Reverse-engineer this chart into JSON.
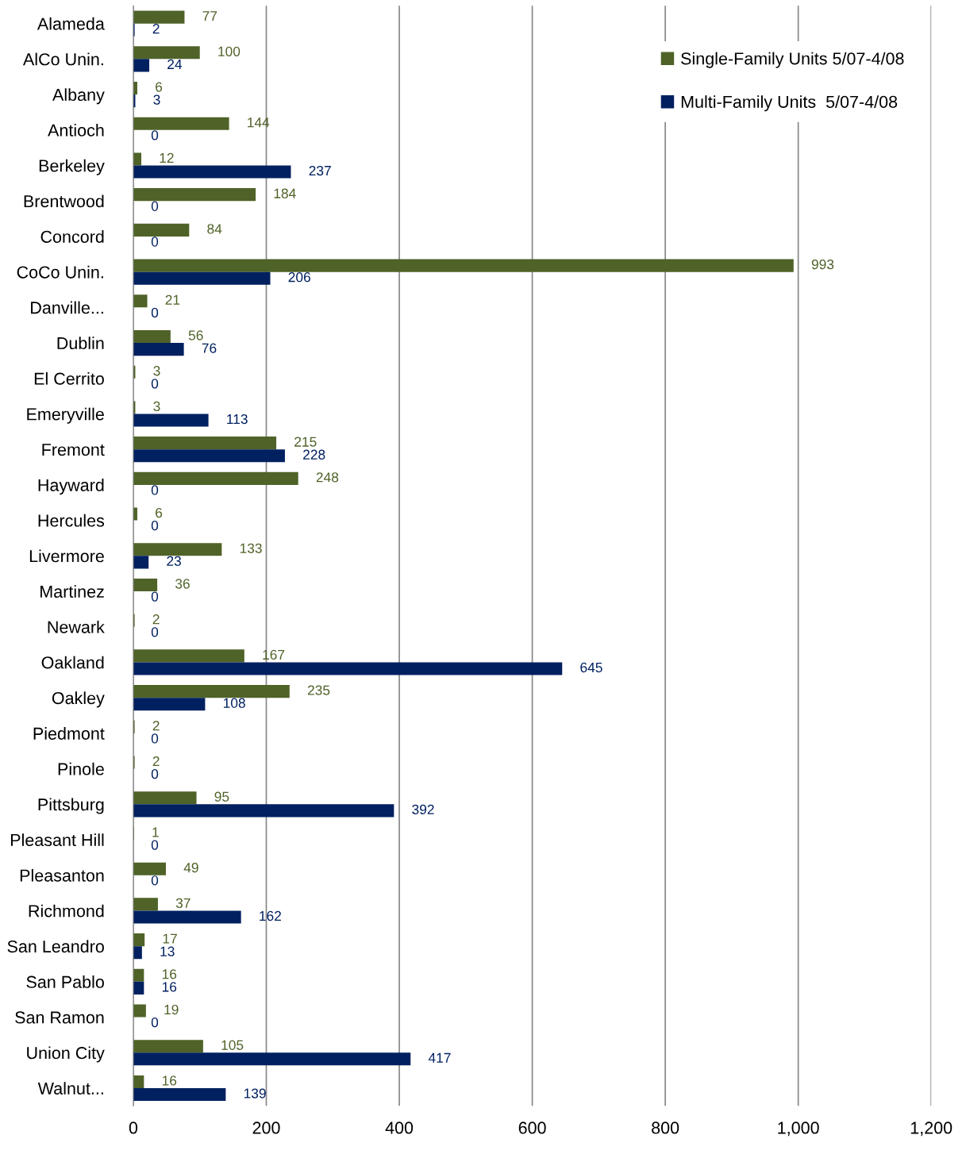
{
  "chart_data": {
    "type": "bar",
    "orientation": "horizontal",
    "categories": [
      "Alameda",
      "AlCo Unin.",
      "Albany",
      "Antioch",
      "Berkeley",
      "Brentwood",
      "Concord",
      "CoCo Unin.",
      "Danville...",
      "Dublin",
      "El Cerrito",
      "Emeryville",
      "Fremont",
      "Hayward",
      "Hercules",
      "Livermore",
      "Martinez",
      "Newark",
      "Oakland",
      "Oakley",
      "Piedmont",
      "Pinole",
      "Pittsburg",
      "Pleasant Hill",
      "Pleasanton",
      "Richmond",
      "San Leandro",
      "San Pablo",
      "San Ramon",
      "Union City",
      "Walnut..."
    ],
    "series": [
      {
        "name": "Single-Family Units 5/07-4/08",
        "color": "#4f6228",
        "values": [
          77,
          100,
          6,
          144,
          12,
          184,
          84,
          993,
          21,
          56,
          3,
          3,
          215,
          248,
          6,
          133,
          36,
          2,
          167,
          235,
          2,
          2,
          95,
          1,
          49,
          37,
          17,
          16,
          19,
          105,
          16
        ]
      },
      {
        "name": "Multi-Family Units  5/07-4/08",
        "color": "#002060",
        "values": [
          2,
          24,
          3,
          0,
          237,
          0,
          0,
          206,
          0,
          76,
          0,
          113,
          228,
          0,
          0,
          23,
          0,
          0,
          645,
          108,
          0,
          0,
          392,
          0,
          0,
          162,
          13,
          16,
          0,
          417,
          139
        ]
      }
    ],
    "xlim": [
      0,
      1200
    ],
    "xticks": [
      0,
      200,
      400,
      600,
      800,
      {
        "value": 1000,
        "label": "1,000"
      },
      {
        "value": 1200,
        "label": "1,200"
      }
    ],
    "grid": "x",
    "legend": "top right",
    "data_labels": true
  }
}
